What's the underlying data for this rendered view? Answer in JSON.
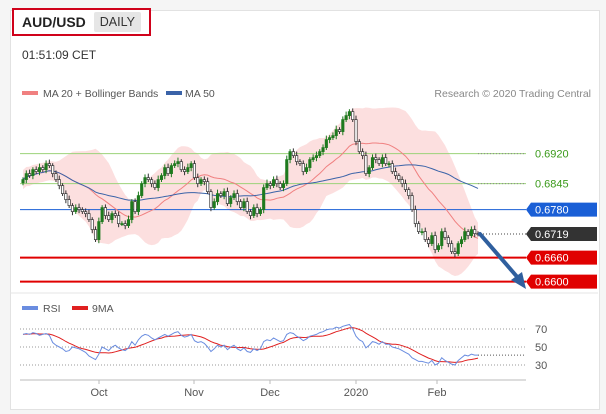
{
  "header": {
    "pair": "AUD/USD",
    "timeframe": "DAILY",
    "time": "01:51:09 CET"
  },
  "legend": {
    "ma20": "MA 20 + Bollinger Bands",
    "ma50": "MA 50",
    "credit": "Research © 2020 Trading Central",
    "rsi": "RSI",
    "rsi_ma": "9MA"
  },
  "colors": {
    "ma20": "#f08080",
    "band": "#fbd9d9",
    "ma50": "#3a63a8",
    "rsi": "#6a8de0",
    "rsi_ma": "#e02020",
    "resistance": "#9bd27a",
    "pivot": "#1a5fd6",
    "support": "#e00000",
    "last": "#333333",
    "up": "#1e7a1e",
    "down": "#333333",
    "arrow": "#2f5f9e"
  },
  "chart_data": {
    "type": "candlestick",
    "symbol": "AUD/USD",
    "x_labels": [
      "Oct",
      "Nov",
      "Dec",
      "2020",
      "Feb"
    ],
    "price_levels": [
      {
        "value": 0.692,
        "label": "0.6920",
        "kind": "resistance"
      },
      {
        "value": 0.6845,
        "label": "0.6845",
        "kind": "resistance"
      },
      {
        "value": 0.678,
        "label": "0.6780",
        "kind": "pivot"
      },
      {
        "value": 0.6719,
        "label": "0.6719",
        "kind": "last"
      },
      {
        "value": 0.666,
        "label": "0.6660",
        "kind": "support"
      },
      {
        "value": 0.66,
        "label": "0.6600",
        "kind": "support"
      }
    ],
    "close": [
      0.6855,
      0.687,
      0.6865,
      0.688,
      0.6875,
      0.6885,
      0.688,
      0.6895,
      0.689,
      0.687,
      0.6855,
      0.684,
      0.682,
      0.6805,
      0.679,
      0.6775,
      0.6785,
      0.678,
      0.6775,
      0.677,
      0.6755,
      0.673,
      0.6705,
      0.675,
      0.6785,
      0.6765,
      0.6755,
      0.677,
      0.6765,
      0.6745,
      0.6745,
      0.674,
      0.6755,
      0.68,
      0.6775,
      0.6815,
      0.6845,
      0.686,
      0.6855,
      0.6845,
      0.6835,
      0.6855,
      0.6865,
      0.6885,
      0.687,
      0.689,
      0.6895,
      0.69,
      0.688,
      0.6875,
      0.6885,
      0.6895,
      0.686,
      0.6845,
      0.6855,
      0.685,
      0.6825,
      0.6785,
      0.68,
      0.682,
      0.6815,
      0.6825,
      0.6795,
      0.681,
      0.682,
      0.68,
      0.6785,
      0.68,
      0.6775,
      0.6765,
      0.6785,
      0.677,
      0.678,
      0.6835,
      0.6845,
      0.684,
      0.6855,
      0.6845,
      0.6835,
      0.6845,
      0.6905,
      0.6925,
      0.6915,
      0.69,
      0.6895,
      0.6875,
      0.6885,
      0.6905,
      0.691,
      0.6915,
      0.6925,
      0.6935,
      0.6955,
      0.696,
      0.6965,
      0.698,
      0.6975,
      0.7005,
      0.7015,
      0.7025,
      0.7005,
      0.695,
      0.6925,
      0.6915,
      0.687,
      0.6885,
      0.691,
      0.6905,
      0.6895,
      0.691,
      0.6895,
      0.6895,
      0.6875,
      0.6865,
      0.6855,
      0.6845,
      0.683,
      0.6815,
      0.678,
      0.6745,
      0.6725,
      0.6725,
      0.6705,
      0.6695,
      0.6715,
      0.668,
      0.669,
      0.6725,
      0.671,
      0.6695,
      0.6675,
      0.667,
      0.6695,
      0.6705,
      0.6725,
      0.6715,
      0.673,
      0.672,
      0.6719
    ],
    "rsi": [
      64,
      65,
      64,
      66,
      65,
      63,
      64,
      65,
      63,
      55,
      52,
      50,
      48,
      45,
      46,
      50,
      49,
      48,
      46,
      44,
      40,
      38,
      36,
      42,
      50,
      48,
      46,
      50,
      52,
      49,
      47,
      46,
      49,
      56,
      52,
      58,
      62,
      64,
      63,
      60,
      58,
      60,
      62,
      64,
      62,
      64,
      66,
      67,
      63,
      61,
      62,
      64,
      57,
      55,
      56,
      54,
      50,
      45,
      48,
      52,
      50,
      52,
      47,
      50,
      52,
      48,
      46,
      49,
      45,
      44,
      48,
      46,
      48,
      56,
      58,
      57,
      60,
      58,
      56,
      57,
      64,
      66,
      65,
      62,
      60,
      57,
      59,
      62,
      63,
      64,
      66,
      67,
      69,
      70,
      70,
      72,
      71,
      73,
      74,
      75,
      70,
      62,
      58,
      56,
      49,
      52,
      56,
      55,
      53,
      56,
      53,
      53,
      50,
      49,
      48,
      46,
      44,
      42,
      38,
      36,
      34,
      34,
      33,
      32,
      35,
      30,
      32,
      38,
      35,
      33,
      31,
      30,
      35,
      38,
      41,
      40,
      42,
      41,
      41
    ]
  }
}
